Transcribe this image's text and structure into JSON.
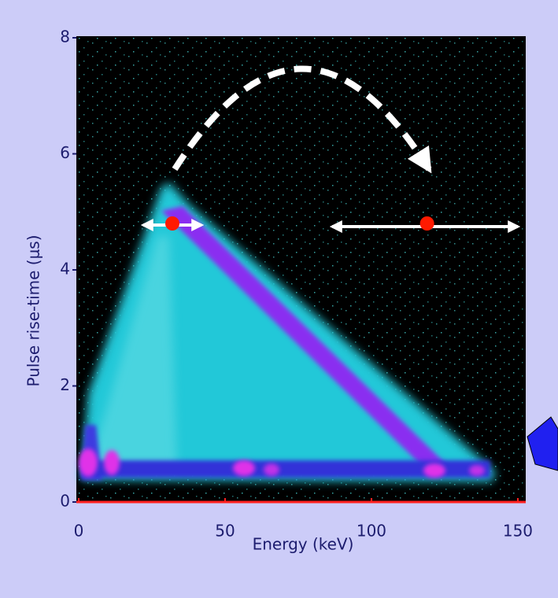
{
  "chart_data": {
    "type": "scatter",
    "x_label": "Energy (keV)",
    "y_label": "Pulse rise-time (μs)",
    "xlim": [
      -0.8,
      152.7
    ],
    "ylim": [
      0,
      8
    ],
    "xticks": [
      0,
      50,
      100,
      150
    ],
    "yticks": [
      0,
      2,
      4,
      6,
      8
    ],
    "series": [
      {
        "color": "#ff1a00",
        "x": [
          32,
          119
        ],
        "values": [
          4.8,
          4.8
        ]
      }
    ]
  }
}
